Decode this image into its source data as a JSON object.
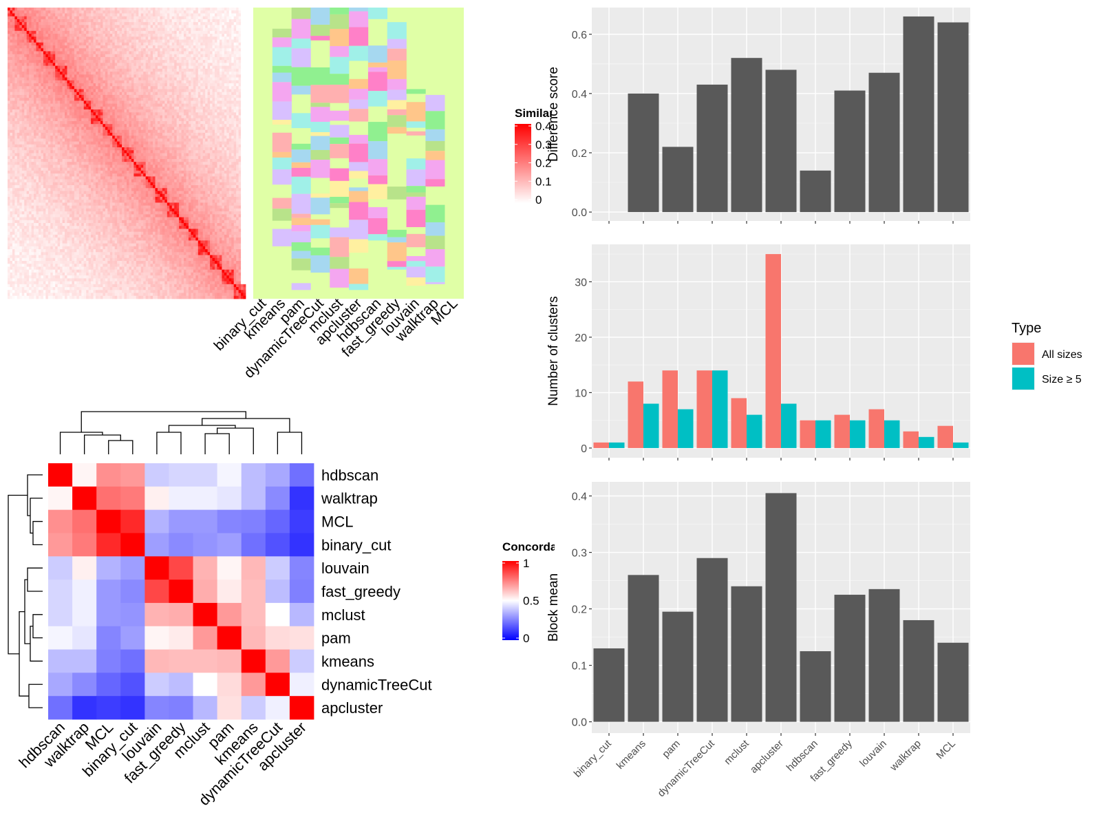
{
  "chart_data": [
    {
      "id": "similarity_heatmap",
      "type": "heatmap",
      "legend_title": "Similarity",
      "legend_ticks": [
        "0.4",
        "0.3",
        "0.2",
        "0.1",
        "0"
      ],
      "color_low": "#FFFFFF",
      "color_high": "#FF0000",
      "range": [
        0,
        0.4
      ],
      "annotation_columns": [
        "binary_cut",
        "kmeans",
        "pam",
        "dynamicTreeCut",
        "mclust",
        "apcluster",
        "hdbscan",
        "fast_greedy",
        "louvain",
        "walktrap",
        "MCL"
      ],
      "annotation_background": "#E0FFA6",
      "annotation_palette": [
        "#A6D8F0",
        "#B8E38A",
        "#FFC68A",
        "#F4A6F0",
        "#FF80C8",
        "#A0F0E8",
        "#D8C0FF",
        "#FFF0A0",
        "#90F090",
        "#FFB0B0"
      ]
    },
    {
      "id": "concordance_heatmap",
      "type": "heatmap",
      "legend_title": "Concordance",
      "legend_ticks": [
        "1",
        "0.5",
        "0"
      ],
      "color_low": "#0000FF",
      "color_mid": "#FFFFFF",
      "color_high": "#FF0000",
      "range": [
        0,
        1
      ],
      "labels": [
        "hdbscan",
        "walktrap",
        "MCL",
        "binary_cut",
        "louvain",
        "fast_greedy",
        "mclust",
        "pam",
        "kmeans",
        "dynamicTreeCut",
        "apcluster"
      ],
      "matrix": [
        [
          1.0,
          0.52,
          0.72,
          0.7,
          0.4,
          0.42,
          0.42,
          0.48,
          0.37,
          0.33,
          0.22
        ],
        [
          0.52,
          1.0,
          0.78,
          0.76,
          0.53,
          0.47,
          0.47,
          0.45,
          0.37,
          0.27,
          0.1
        ],
        [
          0.72,
          0.78,
          1.0,
          0.92,
          0.35,
          0.3,
          0.3,
          0.26,
          0.25,
          0.2,
          0.12
        ],
        [
          0.7,
          0.76,
          0.92,
          1.0,
          0.31,
          0.27,
          0.29,
          0.31,
          0.22,
          0.16,
          0.1
        ],
        [
          0.4,
          0.53,
          0.35,
          0.31,
          1.0,
          0.86,
          0.65,
          0.52,
          0.64,
          0.4,
          0.26
        ],
        [
          0.42,
          0.47,
          0.3,
          0.27,
          0.86,
          1.0,
          0.66,
          0.54,
          0.63,
          0.37,
          0.25
        ],
        [
          0.42,
          0.47,
          0.3,
          0.29,
          0.65,
          0.66,
          1.0,
          0.7,
          0.63,
          0.5,
          0.36
        ],
        [
          0.48,
          0.45,
          0.26,
          0.31,
          0.52,
          0.54,
          0.7,
          1.0,
          0.64,
          0.57,
          0.56
        ],
        [
          0.37,
          0.37,
          0.25,
          0.22,
          0.64,
          0.63,
          0.63,
          0.64,
          1.0,
          0.7,
          0.4
        ],
        [
          0.33,
          0.27,
          0.2,
          0.16,
          0.4,
          0.37,
          0.5,
          0.57,
          0.7,
          1.0,
          0.47
        ],
        [
          0.22,
          0.1,
          0.12,
          0.1,
          0.26,
          0.25,
          0.36,
          0.56,
          0.4,
          0.47,
          1.0
        ]
      ]
    },
    {
      "id": "difference_score",
      "type": "bar",
      "categories": [
        "binary_cut",
        "kmeans",
        "pam",
        "dynamicTreeCut",
        "mclust",
        "apcluster",
        "hdbscan",
        "fast_greedy",
        "louvain",
        "walktrap",
        "MCL"
      ],
      "values": [
        0,
        0.4,
        0.22,
        0.43,
        0.52,
        0.48,
        0.14,
        0.41,
        0.47,
        0.66,
        0.64
      ],
      "ylabel": "Difference score",
      "yticks": [
        "0.0",
        "0.2",
        "0.4",
        "0.6"
      ],
      "ylim": [
        -0.03,
        0.69
      ],
      "bar_color": "#595959"
    },
    {
      "id": "number_of_clusters",
      "type": "bar",
      "categories": [
        "binary_cut",
        "kmeans",
        "pam",
        "dynamicTreeCut",
        "mclust",
        "apcluster",
        "hdbscan",
        "fast_greedy",
        "louvain",
        "walktrap",
        "MCL"
      ],
      "series": [
        {
          "name": "All sizes",
          "color": "#F8766D",
          "values": [
            1,
            12,
            14,
            14,
            9,
            35,
            5,
            6,
            7,
            3,
            4
          ]
        },
        {
          "name": "Size ≥ 5",
          "color": "#00BFC4",
          "values": [
            1,
            8,
            7,
            14,
            6,
            8,
            5,
            5,
            5,
            2,
            1
          ]
        }
      ],
      "ylabel": "Number of clusters",
      "yticks": [
        "0",
        "10",
        "20",
        "30"
      ],
      "ylim": [
        -1.75,
        36.75
      ],
      "legend_title": "Type",
      "legend_position": "right"
    },
    {
      "id": "block_mean",
      "type": "bar",
      "categories": [
        "binary_cut",
        "kmeans",
        "pam",
        "dynamicTreeCut",
        "mclust",
        "apcluster",
        "hdbscan",
        "fast_greedy",
        "louvain",
        "walktrap",
        "MCL"
      ],
      "values": [
        0.13,
        0.26,
        0.195,
        0.29,
        0.24,
        0.405,
        0.125,
        0.225,
        0.235,
        0.18,
        0.14
      ],
      "ylabel": "Block mean",
      "yticks": [
        "0.0",
        "0.1",
        "0.2",
        "0.3",
        "0.4"
      ],
      "ylim": [
        -0.02,
        0.425
      ],
      "bar_color": "#595959"
    }
  ]
}
